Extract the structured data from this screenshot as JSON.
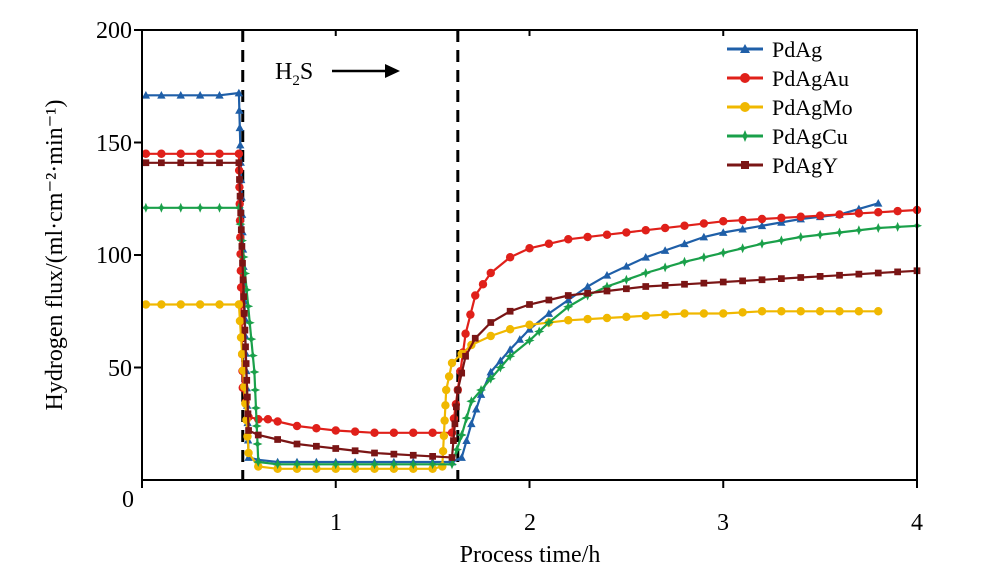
{
  "chart_data": {
    "type": "line",
    "xlabel": "Process time/h",
    "ylabel": "Hydrogen flux/(ml·cm⁻²·min⁻¹)",
    "xlim": [
      0,
      4
    ],
    "ylim": [
      0,
      200
    ],
    "x_ticks": [
      "0",
      "1",
      "2",
      "3",
      "4"
    ],
    "y_ticks": [
      "50",
      "100",
      "150",
      "200"
    ],
    "annotation": {
      "h2s_text": "H",
      "h2s_subscript": "2",
      "h2s_text_tail": "S",
      "arrow": "right-arrow"
    },
    "vlines": [
      0.52,
      1.63
    ],
    "legend_position": "top-right",
    "series": [
      {
        "name": "PdAg",
        "color": "#1f5fa8",
        "marker": "triangle",
        "points": [
          [
            0.02,
            171
          ],
          [
            0.1,
            171
          ],
          [
            0.2,
            171
          ],
          [
            0.3,
            171
          ],
          [
            0.4,
            171
          ],
          [
            0.5,
            172
          ],
          [
            0.55,
            10
          ],
          [
            0.6,
            9
          ],
          [
            0.7,
            8
          ],
          [
            0.9,
            8
          ],
          [
            1.1,
            8
          ],
          [
            1.3,
            8
          ],
          [
            1.5,
            8
          ],
          [
            1.6,
            8
          ],
          [
            1.65,
            10
          ],
          [
            1.7,
            25
          ],
          [
            1.75,
            38
          ],
          [
            1.8,
            48
          ],
          [
            1.9,
            58
          ],
          [
            2.0,
            67
          ],
          [
            2.1,
            74
          ],
          [
            2.2,
            80
          ],
          [
            2.3,
            86
          ],
          [
            2.4,
            91
          ],
          [
            2.5,
            95
          ],
          [
            2.6,
            99
          ],
          [
            2.7,
            102
          ],
          [
            2.8,
            105
          ],
          [
            2.9,
            108
          ],
          [
            3.0,
            110
          ],
          [
            3.2,
            113
          ],
          [
            3.4,
            116
          ],
          [
            3.6,
            118
          ],
          [
            3.8,
            123
          ]
        ]
      },
      {
        "name": "PdAgAu",
        "color": "#e0201a",
        "marker": "circle",
        "points": [
          [
            0.02,
            145
          ],
          [
            0.1,
            145
          ],
          [
            0.2,
            145
          ],
          [
            0.3,
            145
          ],
          [
            0.4,
            145
          ],
          [
            0.5,
            145
          ],
          [
            0.52,
            41
          ],
          [
            0.55,
            28
          ],
          [
            0.6,
            27
          ],
          [
            0.65,
            27
          ],
          [
            0.7,
            26
          ],
          [
            0.8,
            24
          ],
          [
            0.9,
            23
          ],
          [
            1.0,
            22
          ],
          [
            1.2,
            21
          ],
          [
            1.4,
            21
          ],
          [
            1.6,
            21
          ],
          [
            1.63,
            40
          ],
          [
            1.67,
            65
          ],
          [
            1.72,
            82
          ],
          [
            1.8,
            92
          ],
          [
            1.9,
            99
          ],
          [
            2.0,
            103
          ],
          [
            2.1,
            105
          ],
          [
            2.2,
            107
          ],
          [
            2.4,
            109
          ],
          [
            2.6,
            111
          ],
          [
            2.8,
            113
          ],
          [
            3.0,
            115
          ],
          [
            3.2,
            116
          ],
          [
            3.4,
            117
          ],
          [
            3.6,
            118
          ],
          [
            3.8,
            119
          ],
          [
            4.0,
            120
          ]
        ]
      },
      {
        "name": "PdAgMo",
        "color": "#f0b800",
        "marker": "circle",
        "points": [
          [
            0.02,
            78
          ],
          [
            0.1,
            78
          ],
          [
            0.2,
            78
          ],
          [
            0.3,
            78
          ],
          [
            0.4,
            78
          ],
          [
            0.5,
            78
          ],
          [
            0.55,
            12
          ],
          [
            0.6,
            6
          ],
          [
            0.7,
            5
          ],
          [
            0.9,
            5
          ],
          [
            1.1,
            5
          ],
          [
            1.3,
            5
          ],
          [
            1.5,
            5
          ],
          [
            1.55,
            6
          ],
          [
            1.57,
            40
          ],
          [
            1.6,
            52
          ],
          [
            1.7,
            60
          ],
          [
            1.8,
            64
          ],
          [
            1.9,
            67
          ],
          [
            2.0,
            69
          ],
          [
            2.2,
            71
          ],
          [
            2.4,
            72
          ],
          [
            2.6,
            73
          ],
          [
            2.8,
            74
          ],
          [
            3.0,
            74
          ],
          [
            3.2,
            75
          ],
          [
            3.4,
            75
          ],
          [
            3.6,
            75
          ],
          [
            3.8,
            75
          ]
        ]
      },
      {
        "name": "PdAgCu",
        "color": "#1aa04a",
        "marker": "star",
        "points": [
          [
            0.02,
            121
          ],
          [
            0.1,
            121
          ],
          [
            0.2,
            121
          ],
          [
            0.3,
            121
          ],
          [
            0.4,
            121
          ],
          [
            0.5,
            121
          ],
          [
            0.58,
            48
          ],
          [
            0.6,
            8
          ],
          [
            0.7,
            7
          ],
          [
            0.9,
            7
          ],
          [
            1.1,
            7
          ],
          [
            1.3,
            7
          ],
          [
            1.5,
            7
          ],
          [
            1.6,
            7
          ],
          [
            1.65,
            20
          ],
          [
            1.7,
            35
          ],
          [
            1.8,
            45
          ],
          [
            1.9,
            55
          ],
          [
            2.0,
            62
          ],
          [
            2.1,
            70
          ],
          [
            2.2,
            77
          ],
          [
            2.3,
            82
          ],
          [
            2.4,
            86
          ],
          [
            2.5,
            89
          ],
          [
            2.6,
            92
          ],
          [
            2.8,
            97
          ],
          [
            3.0,
            101
          ],
          [
            3.2,
            105
          ],
          [
            3.4,
            108
          ],
          [
            3.6,
            110
          ],
          [
            3.8,
            112
          ],
          [
            4.0,
            113
          ]
        ]
      },
      {
        "name": "PdAgY",
        "color": "#7a1515",
        "marker": "square",
        "points": [
          [
            0.02,
            141
          ],
          [
            0.1,
            141
          ],
          [
            0.2,
            141
          ],
          [
            0.3,
            141
          ],
          [
            0.4,
            141
          ],
          [
            0.5,
            141
          ],
          [
            0.55,
            22
          ],
          [
            0.6,
            20
          ],
          [
            0.7,
            18
          ],
          [
            0.8,
            16
          ],
          [
            0.9,
            15
          ],
          [
            1.0,
            14
          ],
          [
            1.2,
            12
          ],
          [
            1.4,
            11
          ],
          [
            1.6,
            10
          ],
          [
            1.63,
            40
          ],
          [
            1.67,
            55
          ],
          [
            1.72,
            63
          ],
          [
            1.8,
            70
          ],
          [
            1.9,
            75
          ],
          [
            2.0,
            78
          ],
          [
            2.1,
            80
          ],
          [
            2.2,
            82
          ],
          [
            2.4,
            84
          ],
          [
            2.6,
            86
          ],
          [
            2.8,
            87
          ],
          [
            3.0,
            88
          ],
          [
            3.2,
            89
          ],
          [
            3.4,
            90
          ],
          [
            3.6,
            91
          ],
          [
            3.8,
            92
          ],
          [
            4.0,
            93
          ]
        ]
      }
    ]
  }
}
